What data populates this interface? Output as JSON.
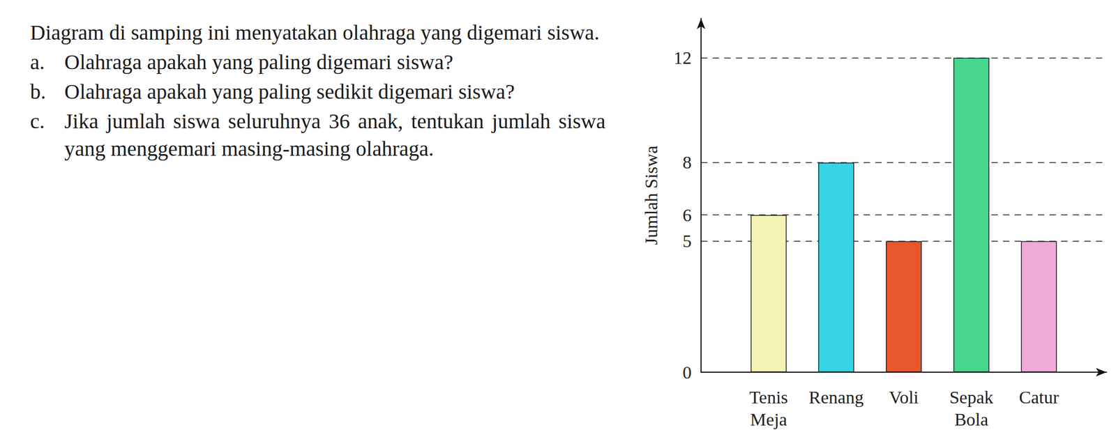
{
  "text": {
    "intro": "Diagram di samping ini menyatakan olahraga yang digemari siswa.",
    "questions": [
      {
        "label": "a.",
        "text": "Olahraga apakah yang paling digemari siswa?"
      },
      {
        "label": "b.",
        "text": "Olahraga apakah yang paling sedikit digemari siswa?"
      },
      {
        "label": "c.",
        "text": "Jika jumlah siswa seluruhnya 36 anak, tentukan jumlah siswa yang menggemari masing-masing olahraga."
      }
    ]
  },
  "chart_data": {
    "type": "bar",
    "y_label": "Jumlah Siswa",
    "categories": [
      "Tenis Meja",
      "Renang",
      "Voli",
      "Sepak Bola",
      "Catur"
    ],
    "values": [
      6,
      8,
      5,
      12,
      5
    ],
    "colors": [
      "#f6f4b4",
      "#35d4e6",
      "#e8562c",
      "#46d68e",
      "#f0aad8"
    ],
    "ylim": [
      0,
      13.5
    ],
    "yticks": [
      0,
      5,
      6,
      8,
      12
    ],
    "grid": true
  }
}
